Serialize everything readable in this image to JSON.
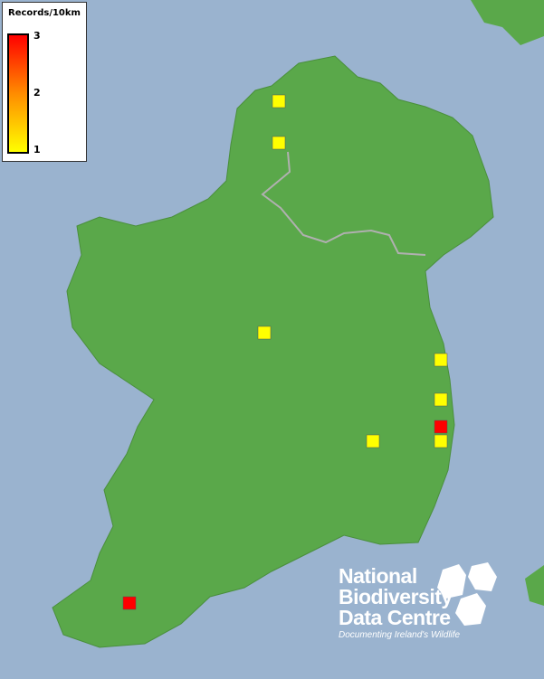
{
  "legend": {
    "title": "Records/10km",
    "max_label": "3",
    "mid_label": "2",
    "min_label": "1",
    "colors": {
      "low": "#ffff00",
      "high": "#ff0000"
    }
  },
  "records": [
    1,
    1,
    1,
    1,
    1,
    3,
    1,
    1,
    3
  ],
  "colors": {
    "sea": "#9ab3cf",
    "land": "#5aa84a",
    "border": "#b0b0b0"
  },
  "logo": {
    "line1": "National",
    "line2": "Biodiversity",
    "line3": "Data Centre",
    "tagline": "Documenting Ireland's Wildlife"
  }
}
